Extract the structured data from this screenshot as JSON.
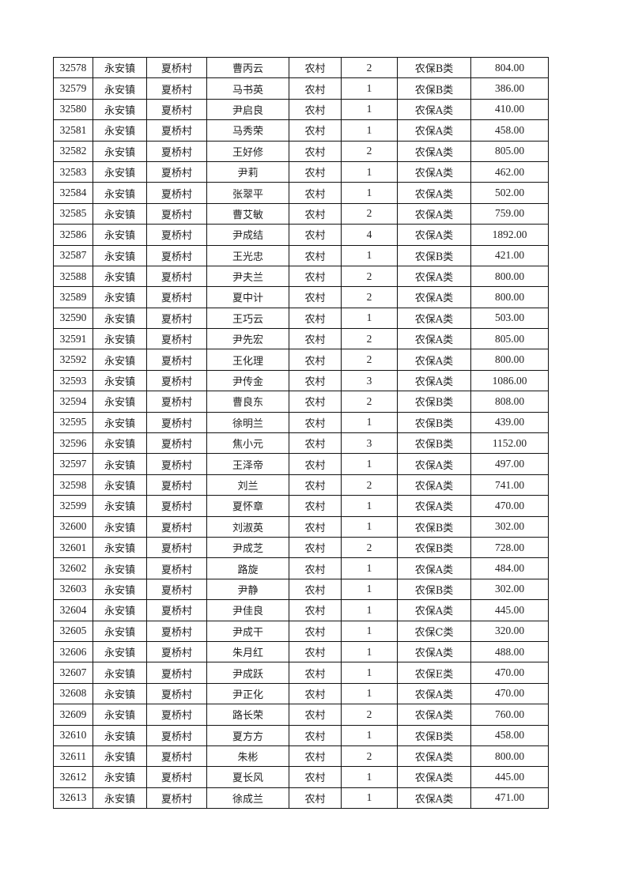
{
  "table": {
    "rows": [
      [
        "32578",
        "永安镇",
        "夏桥村",
        "曹丙云",
        "农村",
        "2",
        "农保B类",
        "804.00"
      ],
      [
        "32579",
        "永安镇",
        "夏桥村",
        "马书英",
        "农村",
        "1",
        "农保B类",
        "386.00"
      ],
      [
        "32580",
        "永安镇",
        "夏桥村",
        "尹启良",
        "农村",
        "1",
        "农保A类",
        "410.00"
      ],
      [
        "32581",
        "永安镇",
        "夏桥村",
        "马秀荣",
        "农村",
        "1",
        "农保A类",
        "458.00"
      ],
      [
        "32582",
        "永安镇",
        "夏桥村",
        "王好修",
        "农村",
        "2",
        "农保A类",
        "805.00"
      ],
      [
        "32583",
        "永安镇",
        "夏桥村",
        "尹莉",
        "农村",
        "1",
        "农保A类",
        "462.00"
      ],
      [
        "32584",
        "永安镇",
        "夏桥村",
        "张翠平",
        "农村",
        "1",
        "农保A类",
        "502.00"
      ],
      [
        "32585",
        "永安镇",
        "夏桥村",
        "曹艾敏",
        "农村",
        "2",
        "农保A类",
        "759.00"
      ],
      [
        "32586",
        "永安镇",
        "夏桥村",
        "尹成结",
        "农村",
        "4",
        "农保A类",
        "1892.00"
      ],
      [
        "32587",
        "永安镇",
        "夏桥村",
        "王光忠",
        "农村",
        "1",
        "农保B类",
        "421.00"
      ],
      [
        "32588",
        "永安镇",
        "夏桥村",
        "尹夫兰",
        "农村",
        "2",
        "农保A类",
        "800.00"
      ],
      [
        "32589",
        "永安镇",
        "夏桥村",
        "夏中计",
        "农村",
        "2",
        "农保A类",
        "800.00"
      ],
      [
        "32590",
        "永安镇",
        "夏桥村",
        "王巧云",
        "农村",
        "1",
        "农保A类",
        "503.00"
      ],
      [
        "32591",
        "永安镇",
        "夏桥村",
        "尹先宏",
        "农村",
        "2",
        "农保A类",
        "805.00"
      ],
      [
        "32592",
        "永安镇",
        "夏桥村",
        "王化理",
        "农村",
        "2",
        "农保A类",
        "800.00"
      ],
      [
        "32593",
        "永安镇",
        "夏桥村",
        "尹传金",
        "农村",
        "3",
        "农保A类",
        "1086.00"
      ],
      [
        "32594",
        "永安镇",
        "夏桥村",
        "曹良东",
        "农村",
        "2",
        "农保B类",
        "808.00"
      ],
      [
        "32595",
        "永安镇",
        "夏桥村",
        "徐明兰",
        "农村",
        "1",
        "农保B类",
        "439.00"
      ],
      [
        "32596",
        "永安镇",
        "夏桥村",
        "焦小元",
        "农村",
        "3",
        "农保B类",
        "1152.00"
      ],
      [
        "32597",
        "永安镇",
        "夏桥村",
        "王泽帝",
        "农村",
        "1",
        "农保A类",
        "497.00"
      ],
      [
        "32598",
        "永安镇",
        "夏桥村",
        "刘兰",
        "农村",
        "2",
        "农保A类",
        "741.00"
      ],
      [
        "32599",
        "永安镇",
        "夏桥村",
        "夏怀章",
        "农村",
        "1",
        "农保A类",
        "470.00"
      ],
      [
        "32600",
        "永安镇",
        "夏桥村",
        "刘淑英",
        "农村",
        "1",
        "农保B类",
        "302.00"
      ],
      [
        "32601",
        "永安镇",
        "夏桥村",
        "尹成芝",
        "农村",
        "2",
        "农保B类",
        "728.00"
      ],
      [
        "32602",
        "永安镇",
        "夏桥村",
        "路旋",
        "农村",
        "1",
        "农保A类",
        "484.00"
      ],
      [
        "32603",
        "永安镇",
        "夏桥村",
        "尹静",
        "农村",
        "1",
        "农保B类",
        "302.00"
      ],
      [
        "32604",
        "永安镇",
        "夏桥村",
        "尹佳良",
        "农村",
        "1",
        "农保A类",
        "445.00"
      ],
      [
        "32605",
        "永安镇",
        "夏桥村",
        "尹成干",
        "农村",
        "1",
        "农保C类",
        "320.00"
      ],
      [
        "32606",
        "永安镇",
        "夏桥村",
        "朱月红",
        "农村",
        "1",
        "农保A类",
        "488.00"
      ],
      [
        "32607",
        "永安镇",
        "夏桥村",
        "尹成跃",
        "农村",
        "1",
        "农保E类",
        "470.00"
      ],
      [
        "32608",
        "永安镇",
        "夏桥村",
        "尹正化",
        "农村",
        "1",
        "农保A类",
        "470.00"
      ],
      [
        "32609",
        "永安镇",
        "夏桥村",
        "路长荣",
        "农村",
        "2",
        "农保A类",
        "760.00"
      ],
      [
        "32610",
        "永安镇",
        "夏桥村",
        "夏方方",
        "农村",
        "1",
        "农保B类",
        "458.00"
      ],
      [
        "32611",
        "永安镇",
        "夏桥村",
        "朱彬",
        "农村",
        "2",
        "农保A类",
        "800.00"
      ],
      [
        "32612",
        "永安镇",
        "夏桥村",
        "夏长风",
        "农村",
        "1",
        "农保A类",
        "445.00"
      ],
      [
        "32613",
        "永安镇",
        "夏桥村",
        "徐成兰",
        "农村",
        "1",
        "农保A类",
        "471.00"
      ]
    ]
  }
}
